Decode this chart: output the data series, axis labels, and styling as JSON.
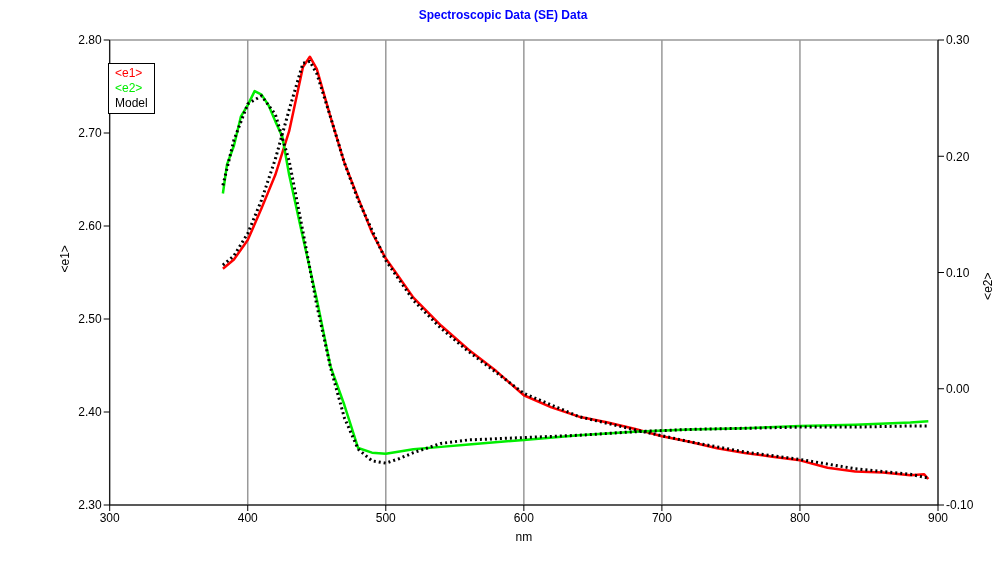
{
  "chart_data": {
    "type": "line",
    "title": "Spectroscopic Data (SE) Data",
    "xlabel": "nm",
    "ylabel": "<e1>",
    "y2label": "<e2>",
    "xlim": [
      300,
      900
    ],
    "xticks": [
      300,
      400,
      500,
      600,
      700,
      800,
      900
    ],
    "ylim": [
      2.3,
      2.8
    ],
    "yticks": [
      {
        "value": 2.3,
        "label": "2.30"
      },
      {
        "value": 2.4,
        "label": "2.40"
      },
      {
        "value": 2.5,
        "label": "2.50"
      },
      {
        "value": 2.6,
        "label": "2.60"
      },
      {
        "value": 2.7,
        "label": "2.70"
      },
      {
        "value": 2.8,
        "label": "2.80"
      }
    ],
    "y2lim": [
      -0.1,
      0.3
    ],
    "y2ticks": [
      {
        "value": -0.1,
        "label": "-0.10"
      },
      {
        "value": 0,
        "label": "0.00"
      },
      {
        "value": 0.1,
        "label": "0.10"
      },
      {
        "value": 0.2,
        "label": "0.20"
      },
      {
        "value": 0.3,
        "label": "0.30"
      }
    ],
    "grid": true,
    "legend": "top left",
    "marker": "none",
    "series": [
      {
        "name": "<e1>",
        "color": "#ff0000",
        "line_style": "solid",
        "x": [
          382,
          390,
          400,
          410,
          420,
          430,
          440,
          445,
          450,
          460,
          470,
          480,
          490,
          500,
          510,
          520,
          540,
          560,
          580,
          600,
          620,
          640,
          660,
          680,
          700,
          720,
          740,
          760,
          780,
          800,
          820,
          840,
          860,
          880,
          890,
          893
        ],
        "values": [
          2.554,
          2.564,
          2.585,
          2.619,
          2.655,
          2.702,
          2.771,
          2.782,
          2.769,
          2.717,
          2.668,
          2.63,
          2.593,
          2.565,
          2.544,
          2.523,
          2.493,
          2.467,
          2.444,
          2.418,
          2.405,
          2.395,
          2.389,
          2.382,
          2.374,
          2.368,
          2.361,
          2.356,
          2.352,
          2.348,
          2.34,
          2.336,
          2.335,
          2.332,
          2.333,
          2.328
        ]
      },
      {
        "name": "<e2>",
        "color": "#00ee00",
        "line_style": "solid",
        "axis": "y2",
        "x": [
          382,
          385,
          390,
          395,
          400,
          405,
          410,
          415,
          420,
          425,
          430,
          440,
          450,
          460,
          470,
          480,
          490,
          500,
          520,
          540,
          560,
          600,
          640,
          680,
          720,
          760,
          800,
          840,
          880,
          893
        ],
        "values": [
          0.168,
          0.193,
          0.209,
          0.234,
          0.244,
          0.256,
          0.253,
          0.244,
          0.23,
          0.217,
          0.184,
          0.13,
          0.077,
          0.019,
          -0.014,
          -0.051,
          -0.055,
          -0.056,
          -0.052,
          -0.05,
          -0.048,
          -0.044,
          -0.04,
          -0.037,
          -0.035,
          -0.034,
          -0.032,
          -0.031,
          -0.029,
          -0.028
        ]
      },
      {
        "name": "Model",
        "color": "#000000",
        "line_style": "dotted",
        "x": [
          382,
          390,
          400,
          410,
          420,
          430,
          440,
          445,
          450,
          460,
          470,
          480,
          500,
          520,
          540,
          560,
          600,
          640,
          680,
          720,
          760,
          800,
          840,
          880,
          893
        ],
        "values": [
          2.558,
          2.568,
          2.592,
          2.628,
          2.672,
          2.725,
          2.775,
          2.777,
          2.764,
          2.717,
          2.668,
          2.628,
          2.563,
          2.52,
          2.49,
          2.465,
          2.42,
          2.395,
          2.381,
          2.368,
          2.357,
          2.349,
          2.339,
          2.333,
          2.329
        ]
      },
      {
        "color": "#000000",
        "line_style": "dotted",
        "axis": "y2",
        "x": [
          382,
          390,
          400,
          410,
          420,
          430,
          440,
          450,
          460,
          470,
          480,
          490,
          500,
          510,
          520,
          540,
          560,
          600,
          640,
          680,
          720,
          760,
          800,
          840,
          880,
          893
        ],
        "values": [
          0.175,
          0.214,
          0.245,
          0.252,
          0.236,
          0.196,
          0.135,
          0.072,
          0.018,
          -0.025,
          -0.052,
          -0.062,
          -0.064,
          -0.06,
          -0.055,
          -0.047,
          -0.044,
          -0.042,
          -0.04,
          -0.037,
          -0.035,
          -0.034,
          -0.033,
          -0.033,
          -0.032,
          -0.032
        ]
      }
    ]
  }
}
